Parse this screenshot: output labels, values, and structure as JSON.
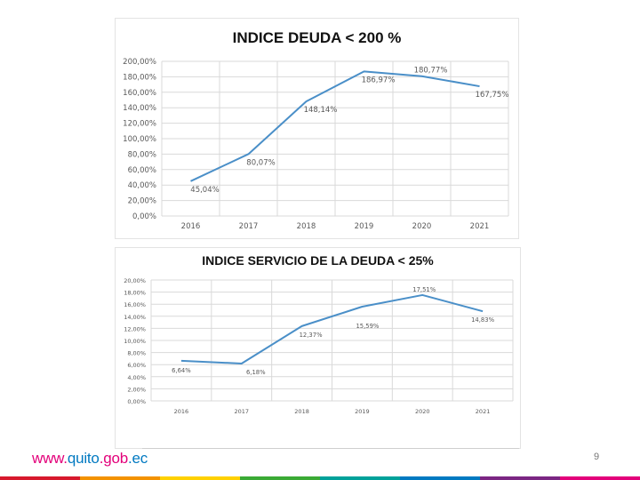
{
  "chart_data": [
    {
      "type": "line",
      "title": "INDICE DEUDA < 200 %",
      "categories": [
        "2016",
        "2017",
        "2018",
        "2019",
        "2020",
        "2021"
      ],
      "values": [
        45.04,
        80.07,
        148.14,
        186.97,
        180.77,
        167.75
      ],
      "data_labels": [
        "45,04%",
        "80,07%",
        "148,14%",
        "186,97%",
        "180,77%",
        "167,75%"
      ],
      "ylim": [
        0,
        200
      ],
      "y_ticks": [
        "0,00%",
        "20,00%",
        "40,00%",
        "60,00%",
        "80,00%",
        "100,00%",
        "120,00%",
        "140,00%",
        "160,00%",
        "180,00%",
        "200,00%"
      ],
      "grid": true,
      "line_color": "#4a8fc8"
    },
    {
      "type": "line",
      "title": "INDICE SERVICIO DE LA DEUDA < 25%",
      "categories": [
        "2016",
        "2017",
        "2018",
        "2019",
        "2020",
        "2021"
      ],
      "values": [
        6.64,
        6.18,
        12.37,
        15.59,
        17.51,
        14.83
      ],
      "data_labels": [
        "6,64%",
        "6,18%",
        "12,37%",
        "15,59%",
        "17,51%",
        "14,83%"
      ],
      "ylim": [
        0,
        20
      ],
      "y_ticks": [
        "0,00%",
        "2,00%",
        "4,00%",
        "6,00%",
        "8,00%",
        "10,00%",
        "12,00%",
        "14,00%",
        "16,00%",
        "18,00%",
        "20,00%"
      ],
      "grid": true,
      "line_color": "#4a8fc8"
    }
  ],
  "footer": {
    "logo_parts": [
      {
        "text": "www.",
        "color": "#e3007a"
      },
      {
        "text": "quito",
        "color": "#0079c1"
      },
      {
        "text": ".",
        "color": "#e3007a"
      },
      {
        "text": "gob",
        "color": "#e3007a"
      },
      {
        "text": ".ec",
        "color": "#0079c1"
      }
    ],
    "page_number": "9"
  },
  "colors": {
    "gridline": "#d9d9d9",
    "text": "#595959",
    "bar": [
      "#d7192d",
      "#f39200",
      "#ffd100",
      "#3aaa35",
      "#00a19a",
      "#0079c1",
      "#7b2683",
      "#e3007a"
    ]
  }
}
